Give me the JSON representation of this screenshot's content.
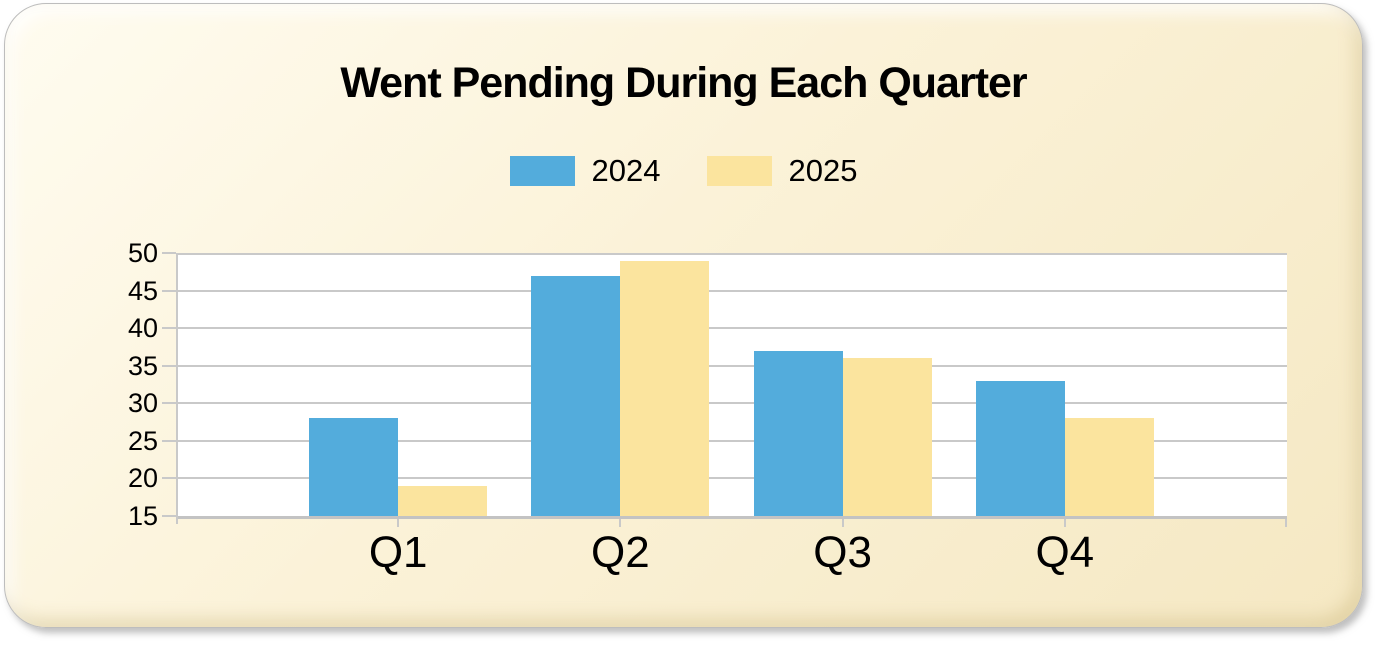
{
  "page": {
    "background": "#FFFFFF"
  },
  "card": {
    "background_light": "#FFFCF0",
    "background_mid": "#FBF2D8",
    "background_dark": "#F5E8C3"
  },
  "colors": {
    "grid": "#C9C9C9",
    "axis": "#C3C3C3",
    "text": "#000000",
    "plot_background": "#FFFFFF"
  },
  "chart_data": {
    "type": "bar",
    "title": "Went Pending During Each Quarter",
    "categories": [
      "Q1",
      "Q2",
      "Q3",
      "Q4"
    ],
    "series": [
      {
        "name": "2024",
        "color": "#53ACDC",
        "values": [
          28,
          47,
          37,
          33
        ]
      },
      {
        "name": "2025",
        "color": "#FBE49E",
        "values": [
          19,
          49,
          36,
          28
        ]
      }
    ],
    "ylim": [
      15,
      50
    ],
    "yticks": [
      15,
      20,
      25,
      30,
      35,
      40,
      45,
      50
    ],
    "grid": true,
    "legend_position": "top",
    "xlabel": "",
    "ylabel": ""
  }
}
